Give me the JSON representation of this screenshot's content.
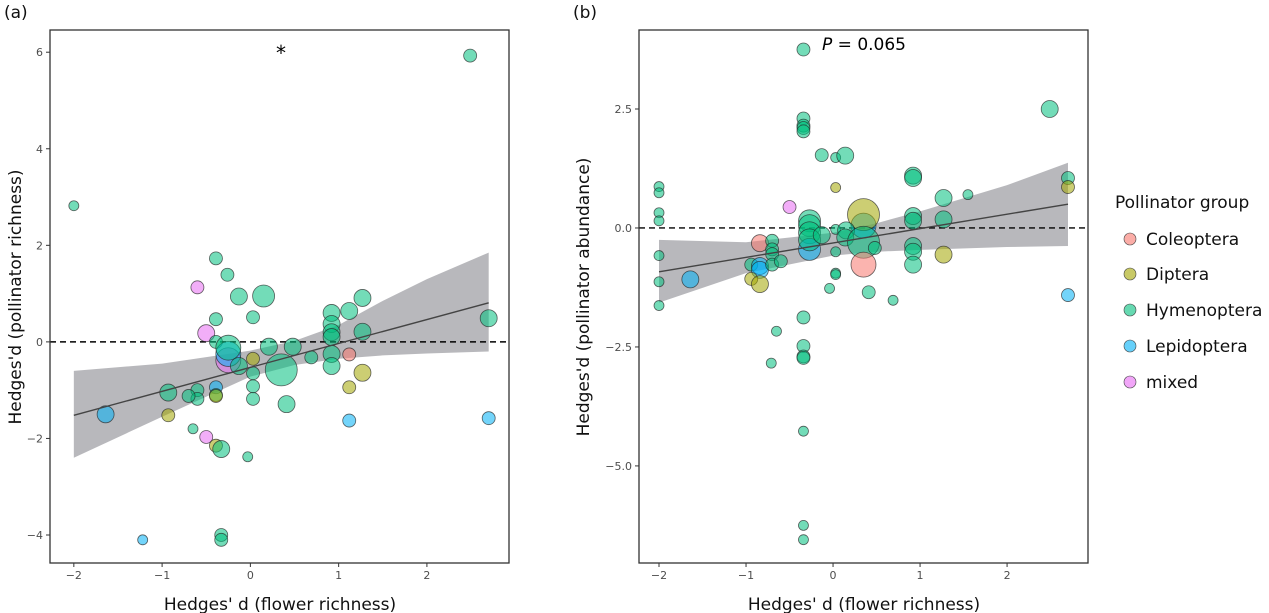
{
  "legend": {
    "title": "Pollinator group",
    "items": [
      {
        "label": "Coleoptera",
        "color": "#F8766D"
      },
      {
        "label": "Diptera",
        "color": "#A3A500"
      },
      {
        "label": "Hymenoptera",
        "color": "#00BF7D"
      },
      {
        "label": "Lepidoptera",
        "color": "#00B0F6"
      },
      {
        "label": "mixed",
        "color": "#E76BF3"
      }
    ]
  },
  "chart_data": [
    {
      "type": "scatter",
      "panel_label": "(a)",
      "annotation": "*",
      "xlabel": "Hedges' d (flower richness)",
      "ylabel": "Hedges'd (pollinator richness)",
      "xlim": [
        -2.27,
        2.93
      ],
      "ylim": [
        -4.58,
        6.46
      ],
      "xticks": [
        -2,
        -1,
        0,
        1,
        2
      ],
      "yticks": [
        -4,
        -2,
        0,
        2,
        4,
        6
      ],
      "reference_line_y": 0,
      "grid": false,
      "regression": {
        "x": [
          -2,
          2.7
        ],
        "y": [
          -1.52,
          0.81
        ]
      },
      "confidence_band": [
        [
          -2,
          -2.4,
          -0.6
        ],
        [
          -1,
          -1.55,
          -0.45
        ],
        [
          0,
          -0.72,
          -0.18
        ],
        [
          0.5,
          -0.48,
          0.02
        ],
        [
          1,
          -0.35,
          0.35
        ],
        [
          1.5,
          -0.28,
          0.85
        ],
        [
          2,
          -0.24,
          1.3
        ],
        [
          2.7,
          -0.2,
          1.85
        ]
      ],
      "points": [
        [
          -2,
          2.82,
          1,
          "Hymenoptera"
        ],
        [
          2.49,
          5.93,
          2,
          "Hymenoptera"
        ],
        [
          -0.39,
          1.73,
          2,
          "Hymenoptera"
        ],
        [
          -0.26,
          1.39,
          2,
          "Hymenoptera"
        ],
        [
          -0.6,
          1.13,
          2,
          "mixed"
        ],
        [
          -0.13,
          0.94,
          3,
          "Hymenoptera"
        ],
        [
          0.15,
          0.95,
          4,
          "Hymenoptera"
        ],
        [
          1.27,
          0.91,
          3,
          "Hymenoptera"
        ],
        [
          0.03,
          0.51,
          2,
          "Hymenoptera"
        ],
        [
          -0.39,
          0.47,
          2,
          "Hymenoptera"
        ],
        [
          0.92,
          0.6,
          3,
          "Hymenoptera"
        ],
        [
          1.12,
          0.64,
          3,
          "Hymenoptera"
        ],
        [
          2.7,
          0.49,
          3,
          "Hymenoptera"
        ],
        [
          0.92,
          0.37,
          3,
          "Hymenoptera"
        ],
        [
          0.92,
          0.2,
          3,
          "Hymenoptera"
        ],
        [
          0.92,
          0.1,
          3,
          "Hymenoptera"
        ],
        [
          1.27,
          0.21,
          3,
          "Hymenoptera"
        ],
        [
          -0.5,
          0.18,
          3,
          "mixed"
        ],
        [
          -0.39,
          0.0,
          2,
          "Hymenoptera"
        ],
        [
          -0.25,
          -0.38,
          5,
          "mixed"
        ],
        [
          -0.25,
          -0.25,
          5,
          "Lepidoptera"
        ],
        [
          -0.25,
          -0.12,
          5,
          "Hymenoptera"
        ],
        [
          0.21,
          -0.1,
          3,
          "Hymenoptera"
        ],
        [
          0.48,
          -0.1,
          3,
          "Hymenoptera"
        ],
        [
          -0.13,
          -0.5,
          3,
          "Hymenoptera"
        ],
        [
          0.03,
          -0.35,
          2,
          "Diptera"
        ],
        [
          0.35,
          -0.58,
          6,
          "Hymenoptera"
        ],
        [
          0.69,
          -0.32,
          2,
          "Hymenoptera"
        ],
        [
          0.92,
          -0.25,
          3,
          "Hymenoptera"
        ],
        [
          0.92,
          -0.5,
          3,
          "Hymenoptera"
        ],
        [
          1.12,
          -0.26,
          2,
          "Coleoptera"
        ],
        [
          1.27,
          -0.64,
          3,
          "Diptera"
        ],
        [
          1.12,
          -0.94,
          2,
          "Diptera"
        ],
        [
          0.03,
          -0.65,
          2,
          "Hymenoptera"
        ],
        [
          0.03,
          -0.92,
          2,
          "Hymenoptera"
        ],
        [
          0.03,
          -1.18,
          2,
          "Hymenoptera"
        ],
        [
          -0.39,
          -0.94,
          2,
          "Lepidoptera"
        ],
        [
          -0.39,
          -1.1,
          2,
          "Hymenoptera"
        ],
        [
          -0.39,
          -1.12,
          2,
          "Diptera"
        ],
        [
          -0.6,
          -1.0,
          2,
          "Hymenoptera"
        ],
        [
          -0.6,
          -1.18,
          2,
          "Hymenoptera"
        ],
        [
          -0.7,
          -1.12,
          2,
          "Hymenoptera"
        ],
        [
          -0.93,
          -1.05,
          3,
          "Hymenoptera"
        ],
        [
          -1.64,
          -1.5,
          3,
          "Lepidoptera"
        ],
        [
          -0.93,
          -1.52,
          2,
          "Diptera"
        ],
        [
          0.41,
          -1.29,
          3,
          "Hymenoptera"
        ],
        [
          1.12,
          -1.63,
          2,
          "Lepidoptera"
        ],
        [
          2.7,
          -1.58,
          2,
          "Lepidoptera"
        ],
        [
          -0.65,
          -1.8,
          1,
          "Hymenoptera"
        ],
        [
          -0.5,
          -1.97,
          2,
          "mixed"
        ],
        [
          -0.39,
          -2.15,
          2,
          "Diptera"
        ],
        [
          -0.33,
          -2.22,
          3,
          "Hymenoptera"
        ],
        [
          -0.03,
          -2.38,
          1,
          "Hymenoptera"
        ],
        [
          -1.22,
          -4.1,
          1,
          "Lepidoptera"
        ],
        [
          -0.33,
          -4.0,
          2,
          "Hymenoptera"
        ],
        [
          -0.33,
          -4.1,
          2,
          "Hymenoptera"
        ]
      ]
    },
    {
      "type": "scatter",
      "panel_label": "(b)",
      "annotation_italic": "P",
      "annotation": " = 0.065",
      "xlabel": "Hedges' d (flower richness)",
      "ylabel": "Hedges'd (pollinator abundance)",
      "xlim": [
        -2.23,
        2.93
      ],
      "ylim": [
        -7.04,
        4.16
      ],
      "xticks": [
        -2,
        -1,
        0,
        1,
        2
      ],
      "yticks": [
        -5.0,
        -2.5,
        0.0,
        2.5
      ],
      "ytick_labels": [
        "-5.0",
        "-2.5",
        "0.0",
        "2.5"
      ],
      "reference_line_y": 0,
      "grid": false,
      "regression": {
        "x": [
          -2,
          2.7
        ],
        "y": [
          -0.92,
          0.5
        ]
      },
      "confidence_band": [
        [
          -2,
          -1.57,
          -0.25
        ],
        [
          -1,
          -0.95,
          -0.3
        ],
        [
          0,
          -0.58,
          -0.1
        ],
        [
          0.5,
          -0.5,
          0.1
        ],
        [
          1,
          -0.46,
          0.35
        ],
        [
          2,
          -0.4,
          0.9
        ],
        [
          2.7,
          -0.38,
          1.37
        ]
      ],
      "points": [
        [
          -0.34,
          3.75,
          2,
          "Hymenoptera"
        ],
        [
          2.49,
          2.5,
          3,
          "Hymenoptera"
        ],
        [
          -0.34,
          2.3,
          2,
          "Hymenoptera"
        ],
        [
          -0.34,
          2.15,
          2,
          "Hymenoptera"
        ],
        [
          -0.34,
          2.1,
          2,
          "Hymenoptera"
        ],
        [
          -0.34,
          2.03,
          2,
          "Hymenoptera"
        ],
        [
          -0.13,
          1.53,
          2,
          "Hymenoptera"
        ],
        [
          0.03,
          1.48,
          1,
          "Hymenoptera"
        ],
        [
          0.14,
          1.52,
          3,
          "Hymenoptera"
        ],
        [
          0.92,
          1.1,
          3,
          "Hymenoptera"
        ],
        [
          0.92,
          1.05,
          3,
          "Hymenoptera"
        ],
        [
          2.7,
          1.05,
          2,
          "Hymenoptera"
        ],
        [
          2.7,
          0.86,
          2,
          "Diptera"
        ],
        [
          -2,
          0.87,
          1,
          "Hymenoptera"
        ],
        [
          -2,
          0.74,
          1,
          "Hymenoptera"
        ],
        [
          -2,
          0.32,
          1,
          "Hymenoptera"
        ],
        [
          -2,
          0.15,
          1,
          "Hymenoptera"
        ],
        [
          0.03,
          0.85,
          1,
          "Diptera"
        ],
        [
          1.55,
          0.7,
          1,
          "Hymenoptera"
        ],
        [
          1.27,
          0.63,
          3,
          "Hymenoptera"
        ],
        [
          -0.5,
          0.44,
          2,
          "mixed"
        ],
        [
          0.35,
          0.05,
          5,
          "Lepidoptera"
        ],
        [
          0.35,
          0.28,
          6,
          "Diptera"
        ],
        [
          -0.27,
          0.15,
          4,
          "Hymenoptera"
        ],
        [
          -0.27,
          0.05,
          4,
          "Hymenoptera"
        ],
        [
          -0.27,
          -0.1,
          4,
          "Hymenoptera"
        ],
        [
          -0.27,
          -0.45,
          4,
          "Lepidoptera"
        ],
        [
          -0.27,
          -0.25,
          4,
          "Hymenoptera"
        ],
        [
          -0.13,
          -0.15,
          3,
          "Hymenoptera"
        ],
        [
          0.03,
          -0.03,
          1,
          "Hymenoptera"
        ],
        [
          0.15,
          -0.05,
          3,
          "Hymenoptera"
        ],
        [
          0.14,
          -0.2,
          3,
          "Hymenoptera"
        ],
        [
          0.35,
          -0.3,
          6,
          "Hymenoptera"
        ],
        [
          0.48,
          -0.42,
          2,
          "Hymenoptera"
        ],
        [
          0.92,
          0.25,
          3,
          "Hymenoptera"
        ],
        [
          0.92,
          0.15,
          3,
          "Hymenoptera"
        ],
        [
          1.27,
          0.18,
          3,
          "Hymenoptera"
        ],
        [
          0.92,
          -0.38,
          3,
          "Hymenoptera"
        ],
        [
          0.92,
          -0.5,
          3,
          "Hymenoptera"
        ],
        [
          1.27,
          -0.56,
          3,
          "Diptera"
        ],
        [
          0.92,
          -0.77,
          3,
          "Hymenoptera"
        ],
        [
          0.35,
          -0.77,
          5,
          "Coleoptera"
        ],
        [
          -0.84,
          -0.32,
          3,
          "Coleoptera"
        ],
        [
          -0.7,
          -0.27,
          2,
          "Hymenoptera"
        ],
        [
          -0.7,
          -0.45,
          2,
          "Hymenoptera"
        ],
        [
          -0.7,
          -0.55,
          2,
          "Hymenoptera"
        ],
        [
          -0.94,
          -0.77,
          2,
          "Hymenoptera"
        ],
        [
          -0.84,
          -0.8,
          3,
          "Lepidoptera"
        ],
        [
          -0.84,
          -0.88,
          3,
          "Lepidoptera"
        ],
        [
          -0.7,
          -0.77,
          2,
          "Hymenoptera"
        ],
        [
          -0.6,
          -0.7,
          2,
          "Hymenoptera"
        ],
        [
          -0.94,
          -1.07,
          2,
          "Diptera"
        ],
        [
          -0.84,
          -1.18,
          3,
          "Diptera"
        ],
        [
          -1.64,
          -1.08,
          3,
          "Lepidoptera"
        ],
        [
          0.03,
          -0.5,
          1,
          "Hymenoptera"
        ],
        [
          0.03,
          -0.95,
          1,
          "Hymenoptera"
        ],
        [
          0.03,
          -0.98,
          1,
          "Hymenoptera"
        ],
        [
          -0.04,
          -1.27,
          1,
          "Hymenoptera"
        ],
        [
          0.41,
          -1.35,
          2,
          "Hymenoptera"
        ],
        [
          0.69,
          -1.52,
          1,
          "Hymenoptera"
        ],
        [
          2.7,
          -1.41,
          2,
          "Lepidoptera"
        ],
        [
          -2,
          -0.58,
          1,
          "Hymenoptera"
        ],
        [
          -2,
          -1.13,
          1,
          "Hymenoptera"
        ],
        [
          -2,
          -1.63,
          1,
          "Hymenoptera"
        ],
        [
          -0.34,
          -1.88,
          2,
          "Hymenoptera"
        ],
        [
          -0.65,
          -2.17,
          1,
          "Hymenoptera"
        ],
        [
          -0.34,
          -2.48,
          2,
          "Hymenoptera"
        ],
        [
          -0.34,
          -2.7,
          2,
          "Hymenoptera"
        ],
        [
          -0.34,
          -2.73,
          2,
          "Hymenoptera"
        ],
        [
          -0.71,
          -2.84,
          1,
          "Hymenoptera"
        ],
        [
          -0.34,
          -4.27,
          1,
          "Hymenoptera"
        ],
        [
          -0.34,
          -6.25,
          1,
          "Hymenoptera"
        ],
        [
          -0.34,
          -6.55,
          1,
          "Hymenoptera"
        ]
      ]
    }
  ]
}
